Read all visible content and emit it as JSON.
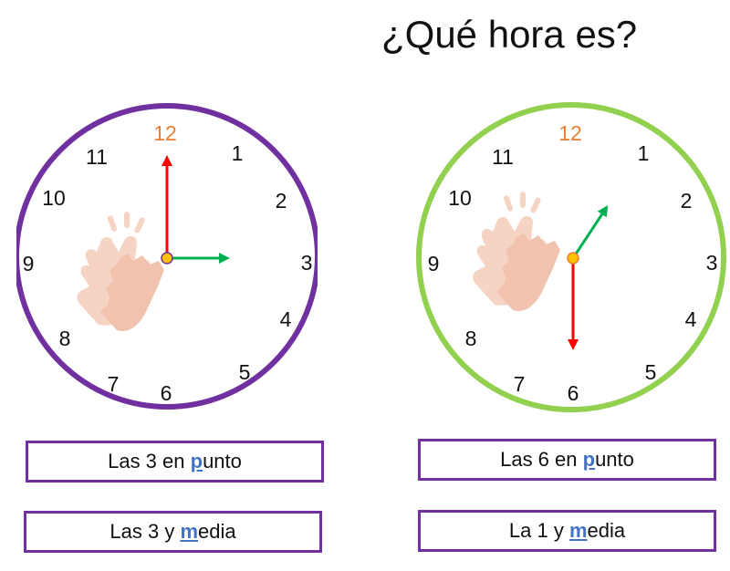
{
  "title": "¿Qué hora es?",
  "clocks": [
    {
      "rim_color": "#7030A0",
      "numbers": [
        "12",
        "1",
        "2",
        "3",
        "4",
        "5",
        "6",
        "7",
        "8",
        "9",
        "10",
        "11"
      ],
      "hour_hand": {
        "points_to": 3,
        "color": "#00B050"
      },
      "minute_hand": {
        "points_to": 12,
        "color": "#FF0000"
      },
      "icon": "clapping-hands-icon"
    },
    {
      "rim_color": "#92D050",
      "numbers": [
        "12",
        "1",
        "2",
        "3",
        "4",
        "5",
        "6",
        "7",
        "8",
        "9",
        "10",
        "11"
      ],
      "hour_hand": {
        "points_to": 1,
        "color": "#00B050"
      },
      "minute_hand": {
        "points_to": 6,
        "color": "#FF0000"
      },
      "icon": "clapping-hands-icon"
    }
  ],
  "options": {
    "left": [
      {
        "pre": "Las 3 en ",
        "hl": "p",
        "post": "unto"
      },
      {
        "pre": "Las 3 y ",
        "hl": "m",
        "post": "edia"
      }
    ],
    "right": [
      {
        "pre": "Las 6 en ",
        "hl": "p",
        "post": "unto"
      },
      {
        "pre": "La 1 y ",
        "hl": "m",
        "post": "edia"
      }
    ]
  },
  "colors": {
    "option_border": "#7030A0",
    "highlight": "#4472C4",
    "twelve": "#ED7D31"
  }
}
